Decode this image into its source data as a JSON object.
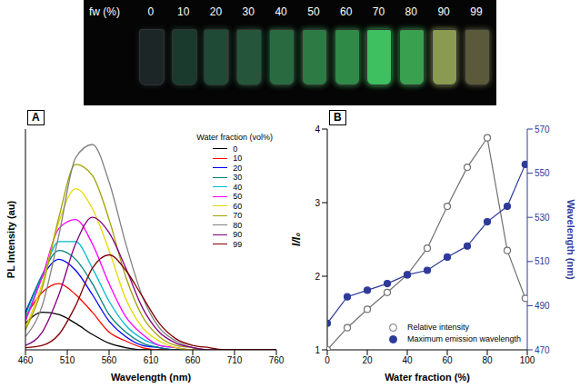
{
  "photo": {
    "label": "fw (%)",
    "water_fractions": [
      0,
      10,
      20,
      30,
      40,
      50,
      60,
      70,
      80,
      90,
      99
    ],
    "colors": [
      "#1c2626",
      "#1b3a2e",
      "#1f4a35",
      "#25553a",
      "#2a6a40",
      "#2d7a45",
      "#2f8a48",
      "#3fc060",
      "#39a050",
      "#8a9a50",
      "#5a5a3a"
    ]
  },
  "chart_data": [
    {
      "type": "line",
      "panel": "A",
      "x_label": "Wavelength (nm)",
      "y_label": "PL Intensity (au)",
      "legend_title": "Water fraction (vol%)",
      "legend": "upper right",
      "tick_labels": "x",
      "xlim": [
        460,
        760
      ],
      "xticks": [
        460,
        510,
        560,
        610,
        660,
        710,
        760
      ],
      "ylim": [
        0,
        100
      ],
      "x": [
        460,
        480,
        500,
        520,
        540,
        560,
        580,
        600,
        620,
        640,
        660,
        680,
        700,
        720,
        740,
        760
      ],
      "series": [
        {
          "name": "0",
          "color": "#000000",
          "values": [
            12,
            17,
            16,
            12,
            7,
            3,
            1,
            0,
            0,
            0,
            0,
            0,
            0,
            0,
            0,
            0
          ]
        },
        {
          "name": "10",
          "color": "#ff0000",
          "values": [
            15,
            26,
            30,
            25,
            17,
            8,
            4,
            1,
            0,
            0,
            0,
            0,
            0,
            0,
            0,
            0
          ]
        },
        {
          "name": "20",
          "color": "#0000ff",
          "values": [
            17,
            33,
            41,
            36,
            25,
            13,
            6,
            2,
            1,
            0,
            0,
            0,
            0,
            0,
            0,
            0
          ]
        },
        {
          "name": "30",
          "color": "#008080",
          "values": [
            16,
            34,
            45,
            41,
            30,
            16,
            8,
            3,
            1,
            0,
            0,
            0,
            0,
            0,
            0,
            0
          ]
        },
        {
          "name": "40",
          "color": "#00bcd4",
          "values": [
            14,
            33,
            49,
            49,
            37,
            22,
            11,
            5,
            2,
            1,
            0,
            0,
            0,
            0,
            0,
            0
          ]
        },
        {
          "name": "50",
          "color": "#ff00ff",
          "values": [
            13,
            33,
            55,
            59,
            48,
            30,
            15,
            7,
            2,
            1,
            0,
            0,
            0,
            0,
            0,
            0
          ]
        },
        {
          "name": "60",
          "color": "#e6d800",
          "values": [
            10,
            30,
            58,
            73,
            64,
            45,
            23,
            10,
            4,
            1,
            0,
            0,
            0,
            0,
            0,
            0
          ]
        },
        {
          "name": "70",
          "color": "#a0a000",
          "values": [
            9,
            28,
            60,
            84,
            79,
            59,
            33,
            15,
            6,
            2,
            1,
            0,
            0,
            0,
            0,
            0
          ]
        },
        {
          "name": "80",
          "color": "#808080",
          "values": [
            6,
            20,
            52,
            87,
            93,
            76,
            48,
            24,
            10,
            4,
            1,
            0,
            0,
            0,
            0,
            0
          ]
        },
        {
          "name": "90",
          "color": "#800080",
          "values": [
            2,
            8,
            25,
            48,
            60,
            53,
            37,
            19,
            8,
            3,
            1,
            0,
            0,
            0,
            0,
            0
          ]
        },
        {
          "name": "99",
          "color": "#800000",
          "values": [
            1,
            2,
            7,
            20,
            37,
            43,
            36,
            24,
            12,
            5,
            2,
            1,
            0,
            0,
            0,
            0
          ]
        }
      ]
    },
    {
      "type": "line",
      "panel": "B",
      "x_label": "Water fraction (%)",
      "y_label": "I/I₀",
      "y2_label": "Wavelength (nm)",
      "legend": "lower right",
      "xlim": [
        0,
        100
      ],
      "xticks": [
        0,
        20,
        40,
        60,
        80,
        100
      ],
      "ylim": [
        1,
        4
      ],
      "yticks": [
        1,
        2,
        3,
        4
      ],
      "y2lim": [
        470,
        570
      ],
      "y2ticks": [
        470,
        490,
        510,
        530,
        550,
        570
      ],
      "x": [
        0,
        10,
        20,
        30,
        40,
        50,
        60,
        70,
        80,
        90,
        99
      ],
      "series": [
        {
          "name": "Relative intensity",
          "color": "#707070",
          "marker": "open_circle",
          "line_style": "solid",
          "values": [
            1.0,
            1.3,
            1.55,
            1.78,
            2.02,
            2.38,
            2.95,
            3.48,
            3.88,
            2.35,
            1.7
          ]
        },
        {
          "name": "Maximum emission wavelength",
          "color": "#2e3a9a",
          "marker": "filled_circle",
          "line_style": "solid",
          "axis": "y2",
          "values": [
            482,
            494,
            497,
            500,
            504,
            506,
            512,
            517,
            528,
            535,
            554
          ]
        }
      ]
    }
  ]
}
